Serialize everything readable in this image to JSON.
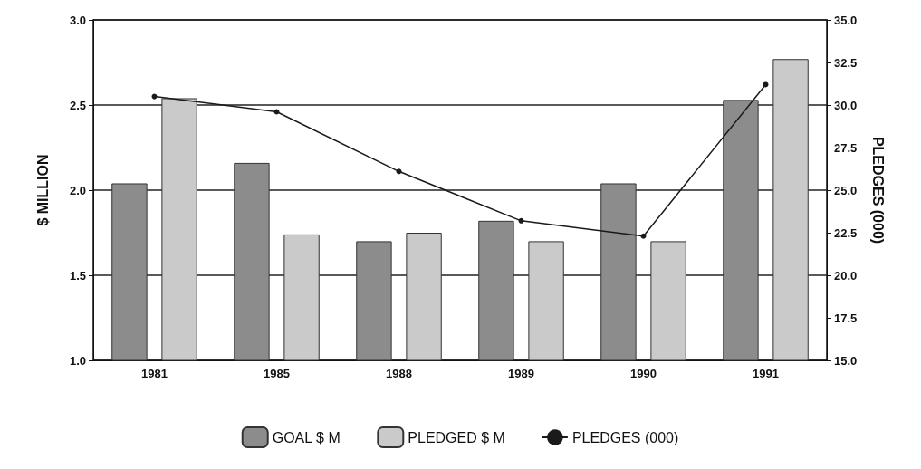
{
  "chart_data": {
    "type": "bar",
    "ylabel": "$ MILLION",
    "y2label": "PLEDGES (000)",
    "categories": [
      "1981",
      "1985",
      "1988",
      "1989",
      "1990",
      "1991"
    ],
    "series": [
      {
        "name": "GOAL $ M",
        "color": "#8c8c8c",
        "values": [
          2.04,
          2.16,
          1.7,
          1.82,
          2.04,
          2.53
        ]
      },
      {
        "name": "PLEDGED $ M",
        "color": "#cacaca",
        "values": [
          2.54,
          1.74,
          1.75,
          1.7,
          1.7,
          2.77
        ]
      },
      {
        "name": "PLEDGES (000)",
        "type": "line",
        "axis": "y2",
        "color": "#1a1a1a",
        "values": [
          30.5,
          29.6,
          26.1,
          23.2,
          22.3,
          31.2
        ]
      }
    ],
    "ylim": [
      1.0,
      3.0
    ],
    "yticks": [
      {
        "value": 1,
        "label": "1.0"
      },
      1.5,
      {
        "value": 2,
        "label": "2.0"
      },
      2.5,
      {
        "value": 3,
        "label": "3.0"
      }
    ],
    "y2lim": [
      15,
      35
    ],
    "y2ticks": [
      {
        "value": 15,
        "label": "15.0"
      },
      17.5,
      {
        "value": 20,
        "label": "20.0"
      },
      22.5,
      {
        "value": 25,
        "label": "25.0"
      },
      27.5,
      {
        "value": 30,
        "label": "30.0"
      },
      32.5,
      {
        "value": 35,
        "label": "35.0"
      }
    ],
    "grid": "y",
    "legend": "bottom",
    "marker": "circle",
    "line_style": "solid"
  }
}
